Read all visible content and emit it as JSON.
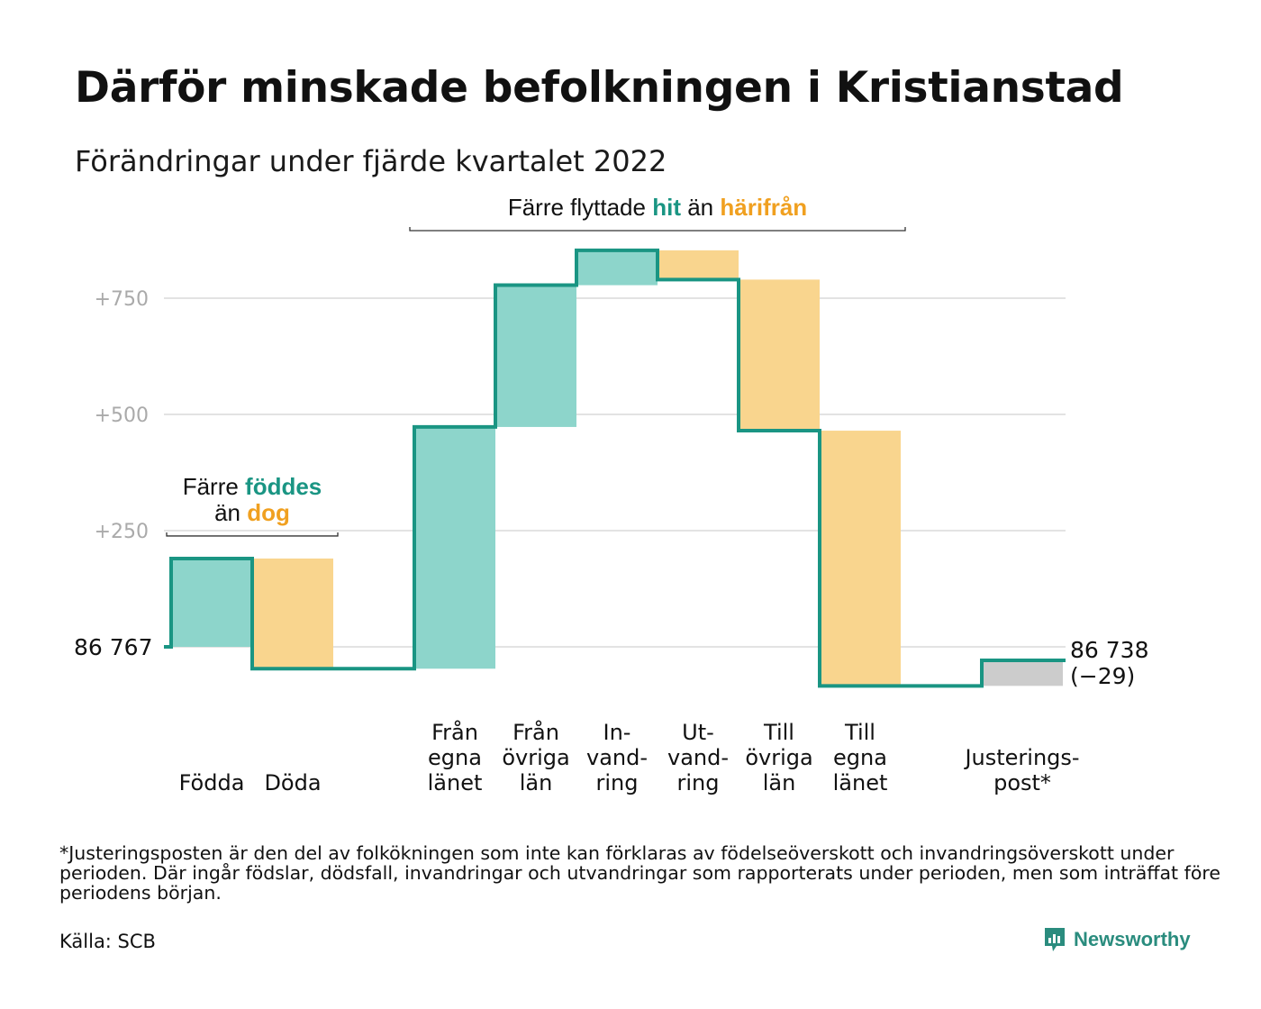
{
  "title": "Därför minskade befolkningen i Kristianstad",
  "subtitle": "Förändringar under fjärde kvartalet 2022",
  "colors": {
    "increase": "#8dd5cb",
    "decrease": "#f9d58e",
    "adjustment": "#cccccc",
    "line": "#1a9583",
    "accent_green": "#1a9583",
    "accent_orange": "#f0a020",
    "grid": "#e3e3e3",
    "tick": "#aaaaaa"
  },
  "chart_data": {
    "type": "waterfall",
    "yaxis": {
      "ticks": [
        250,
        500,
        750
      ],
      "tick_labels": [
        "+250",
        "+500",
        "+750"
      ],
      "ylim": [
        -90,
        840
      ],
      "grid": true
    },
    "start": {
      "value": 86767,
      "label": "86 767"
    },
    "end": {
      "value": 86738,
      "label": "86 738",
      "change_label": "(−29)"
    },
    "steps": [
      {
        "label": [
          "Födda"
        ],
        "delta": 190,
        "kind": "increase"
      },
      {
        "label": [
          "Döda"
        ],
        "delta": -237,
        "kind": "decrease"
      },
      {
        "label": [],
        "delta": 0,
        "kind": "gap"
      },
      {
        "label": [
          "Från",
          "egna",
          "länet"
        ],
        "delta": 520,
        "kind": "increase"
      },
      {
        "label": [
          "Från",
          "övriga",
          "län"
        ],
        "delta": 305,
        "kind": "increase"
      },
      {
        "label": [
          "In-",
          "vand-",
          "ring"
        ],
        "delta": 75,
        "kind": "increase"
      },
      {
        "label": [
          "Ut-",
          "vand-",
          "ring"
        ],
        "delta": -63,
        "kind": "decrease"
      },
      {
        "label": [
          "Till",
          "övriga",
          "län"
        ],
        "delta": -325,
        "kind": "decrease"
      },
      {
        "label": [
          "Till",
          "egna",
          "länet"
        ],
        "delta": -549,
        "kind": "decrease"
      },
      {
        "label": [],
        "delta": 0,
        "kind": "gap"
      },
      {
        "label": [
          "Justerings-",
          "post*"
        ],
        "delta": 55,
        "kind": "adjustment"
      }
    ],
    "annotations": [
      {
        "id": "births",
        "lines": [
          [
            {
              "t": "Färre ",
              "c": ""
            },
            {
              "t": "föddes",
              "c": "green"
            }
          ],
          [
            {
              "t": "än ",
              "c": ""
            },
            {
              "t": "dog",
              "c": "orange"
            }
          ]
        ],
        "from_step": 0,
        "to_step": 1
      },
      {
        "id": "migration",
        "lines": [
          [
            {
              "t": "Färre flyttade ",
              "c": ""
            },
            {
              "t": "hit",
              "c": "green"
            },
            {
              "t": " än ",
              "c": ""
            },
            {
              "t": "härifrån",
              "c": "orange"
            }
          ]
        ],
        "from_step": 3,
        "to_step": 8
      }
    ]
  },
  "footnote": "*Justeringsposten är den del av folkökningen som inte kan förklaras av födelseöverskott och invandringsöverskott under perioden. Där ingår födslar, dödsfall, invandringar och utvandringar som rapporterats under perioden, men som inträffat före periodens början.",
  "source": "Källa: SCB",
  "brand": {
    "name": "Newsworthy",
    "logo_icon": "bar-chart-bubble-icon"
  }
}
